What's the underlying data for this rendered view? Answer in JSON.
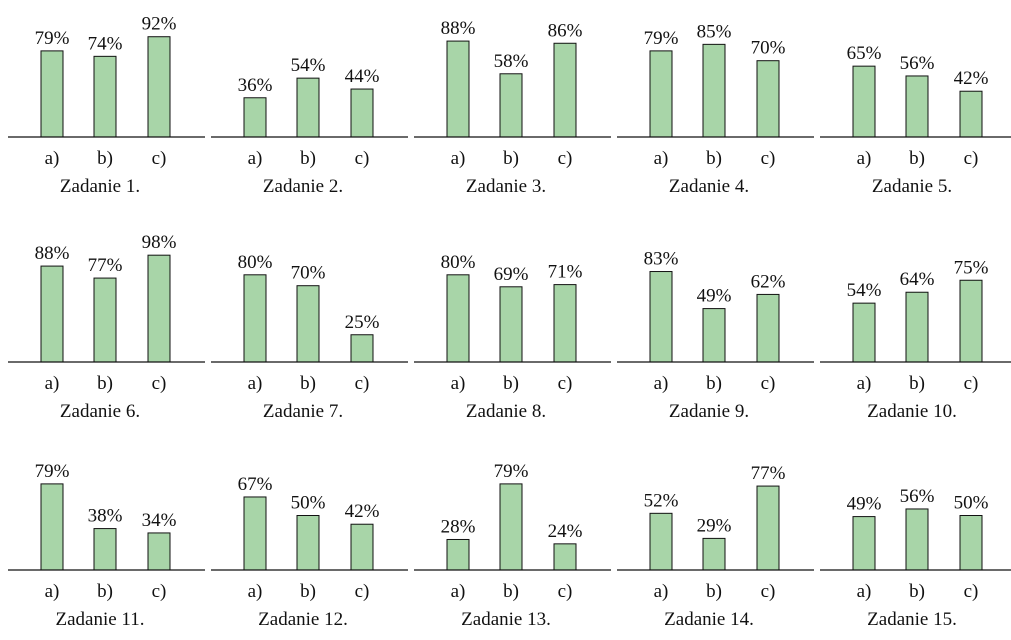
{
  "chart_data": [
    {
      "type": "bar",
      "title": "Zadanie 1.",
      "categories": [
        "a)",
        "b)",
        "c)"
      ],
      "values": [
        79,
        74,
        92
      ],
      "value_labels": [
        "79%",
        "74%",
        "92%"
      ],
      "color": "#a8d5a8"
    },
    {
      "type": "bar",
      "title": "Zadanie 2.",
      "categories": [
        "a)",
        "b)",
        "c)"
      ],
      "values": [
        36,
        54,
        44
      ],
      "value_labels": [
        "36%",
        "54%",
        "44%"
      ],
      "color": "#a8d5a8"
    },
    {
      "type": "bar",
      "title": "Zadanie 3.",
      "categories": [
        "a)",
        "b)",
        "c)"
      ],
      "values": [
        88,
        58,
        86
      ],
      "value_labels": [
        "88%",
        "58%",
        "86%"
      ],
      "color": "#a8d5a8"
    },
    {
      "type": "bar",
      "title": "Zadanie 4.",
      "categories": [
        "a)",
        "b)",
        "c)"
      ],
      "values": [
        79,
        85,
        70
      ],
      "value_labels": [
        "79%",
        "85%",
        "70%"
      ],
      "color": "#a8d5a8"
    },
    {
      "type": "bar",
      "title": "Zadanie 5.",
      "categories": [
        "a)",
        "b)",
        "c)"
      ],
      "values": [
        65,
        56,
        42
      ],
      "value_labels": [
        "65%",
        "56%",
        "42%"
      ],
      "color": "#a8d5a8"
    },
    {
      "type": "bar",
      "title": "Zadanie 6.",
      "categories": [
        "a)",
        "b)",
        "c)"
      ],
      "values": [
        88,
        77,
        98
      ],
      "value_labels": [
        "88%",
        "77%",
        "98%"
      ],
      "color": "#a8d5a8"
    },
    {
      "type": "bar",
      "title": "Zadanie 7.",
      "categories": [
        "a)",
        "b)",
        "c)"
      ],
      "values": [
        80,
        70,
        25
      ],
      "value_labels": [
        "80%",
        "70%",
        "25%"
      ],
      "color": "#a8d5a8"
    },
    {
      "type": "bar",
      "title": "Zadanie 8.",
      "categories": [
        "a)",
        "b)",
        "c)"
      ],
      "values": [
        80,
        69,
        71
      ],
      "value_labels": [
        "80%",
        "69%",
        "71%"
      ],
      "color": "#a8d5a8"
    },
    {
      "type": "bar",
      "title": "Zadanie 9.",
      "categories": [
        "a)",
        "b)",
        "c)"
      ],
      "values": [
        83,
        49,
        62
      ],
      "value_labels": [
        "83%",
        "49%",
        "62%"
      ],
      "color": "#a8d5a8"
    },
    {
      "type": "bar",
      "title": "Zadanie 10.",
      "categories": [
        "a)",
        "b)",
        "c)"
      ],
      "values": [
        54,
        64,
        75
      ],
      "value_labels": [
        "54%",
        "64%",
        "75%"
      ],
      "color": "#a8d5a8"
    },
    {
      "type": "bar",
      "title": "Zadanie 11.",
      "categories": [
        "a)",
        "b)",
        "c)"
      ],
      "values": [
        79,
        38,
        34
      ],
      "value_labels": [
        "79%",
        "38%",
        "34%"
      ],
      "color": "#a8d5a8"
    },
    {
      "type": "bar",
      "title": "Zadanie 12.",
      "categories": [
        "a)",
        "b)",
        "c)"
      ],
      "values": [
        67,
        50,
        42
      ],
      "value_labels": [
        "67%",
        "50%",
        "42%"
      ],
      "color": "#a8d5a8"
    },
    {
      "type": "bar",
      "title": "Zadanie 13.",
      "categories": [
        "a)",
        "b)",
        "c)"
      ],
      "values": [
        28,
        79,
        24
      ],
      "value_labels": [
        "28%",
        "79%",
        "24%"
      ],
      "color": "#a8d5a8"
    },
    {
      "type": "bar",
      "title": "Zadanie 14.",
      "categories": [
        "a)",
        "b)",
        "c)"
      ],
      "values": [
        52,
        29,
        77
      ],
      "value_labels": [
        "52%",
        "29%",
        "77%"
      ],
      "color": "#a8d5a8"
    },
    {
      "type": "bar",
      "title": "Zadanie 15.",
      "categories": [
        "a)",
        "b)",
        "c)"
      ],
      "values": [
        49,
        56,
        50
      ],
      "value_labels": [
        "49%",
        "56%",
        "50%"
      ],
      "color": "#a8d5a8"
    }
  ]
}
